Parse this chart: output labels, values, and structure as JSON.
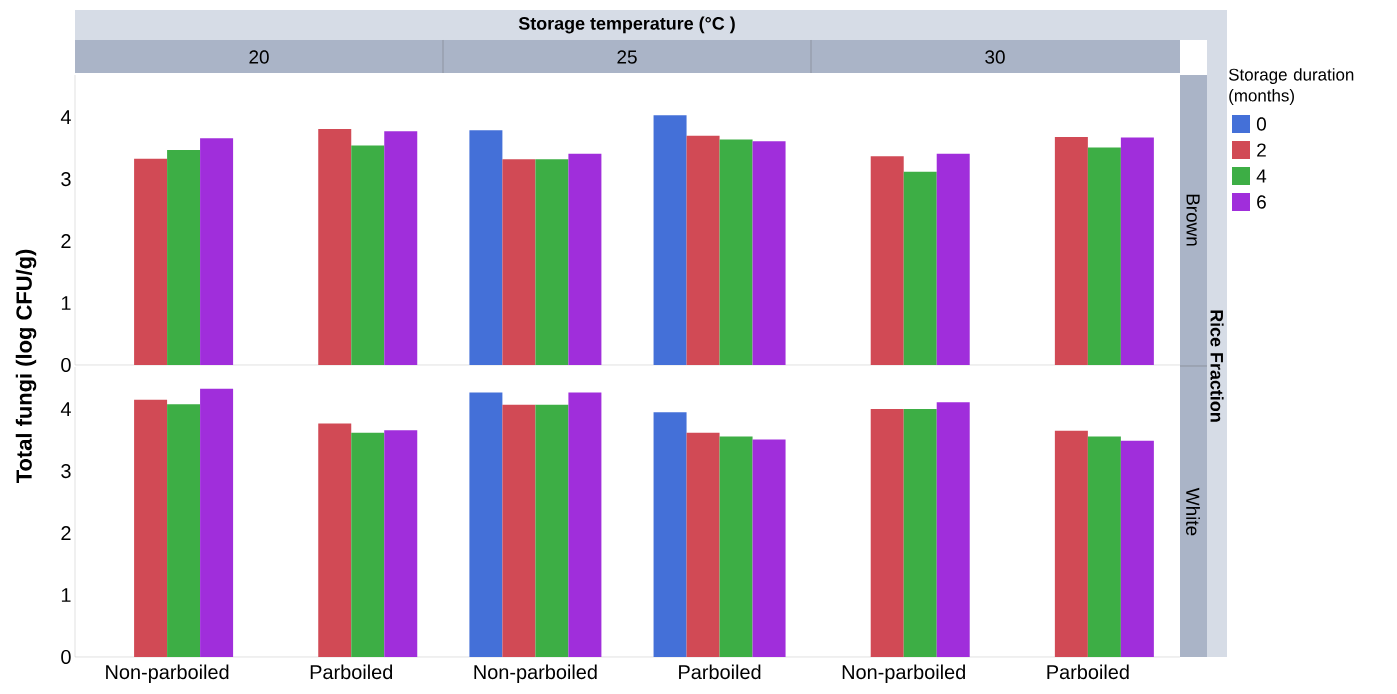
{
  "chart_data": [
    {
      "type": "bar",
      "ylabel": "Total fungi (log CFU/g)",
      "y2label": "Brown",
      "legend_title": "Storage duration (months)",
      "legend": "right",
      "annotations": [
        "Storage temperature (°C )",
        "20",
        "25",
        "30",
        "Rice Fraction"
      ],
      "tick_labels": "y",
      "categories": [
        null,
        null,
        null,
        null,
        null,
        null
      ],
      "ylim": [
        0,
        4.68
      ],
      "yticks": [
        0,
        1,
        2,
        3,
        4
      ],
      "series": [
        {
          "name": "0",
          "color": "#4470d8",
          "values": [
            null,
            null,
            3.79,
            4.03,
            null,
            null
          ]
        },
        {
          "name": "2",
          "color": "#d14a55",
          "values": [
            3.33,
            3.81,
            3.32,
            3.7,
            3.37,
            3.68
          ]
        },
        {
          "name": "4",
          "color": "#3dae45",
          "values": [
            3.47,
            3.54,
            3.32,
            3.64,
            3.12,
            3.51
          ]
        },
        {
          "name": "6",
          "color": "#a02edb",
          "values": [
            3.66,
            3.77,
            3.41,
            3.61,
            3.41,
            3.67
          ]
        }
      ]
    },
    {
      "type": "bar",
      "y2label": "White",
      "categories": [
        "Non-parboiled",
        "Parboiled",
        "Non-parboiled",
        "Parboiled",
        "Non-parboiled",
        "Parboiled"
      ],
      "ylim": [
        0,
        4.68
      ],
      "yticks": [
        0,
        1,
        2,
        3,
        4
      ],
      "series": [
        {
          "color": "#4470d8",
          "values": [
            null,
            null,
            4.27,
            3.95,
            null,
            null
          ]
        },
        {
          "color": "#d14a55",
          "values": [
            4.15,
            3.77,
            4.07,
            3.62,
            4.0,
            3.65
          ]
        },
        {
          "color": "#3dae45",
          "values": [
            4.08,
            3.62,
            4.07,
            3.56,
            4.0,
            3.56
          ]
        },
        {
          "color": "#a02edb",
          "values": [
            4.33,
            3.66,
            4.27,
            3.51,
            4.11,
            3.49
          ]
        }
      ]
    }
  ]
}
